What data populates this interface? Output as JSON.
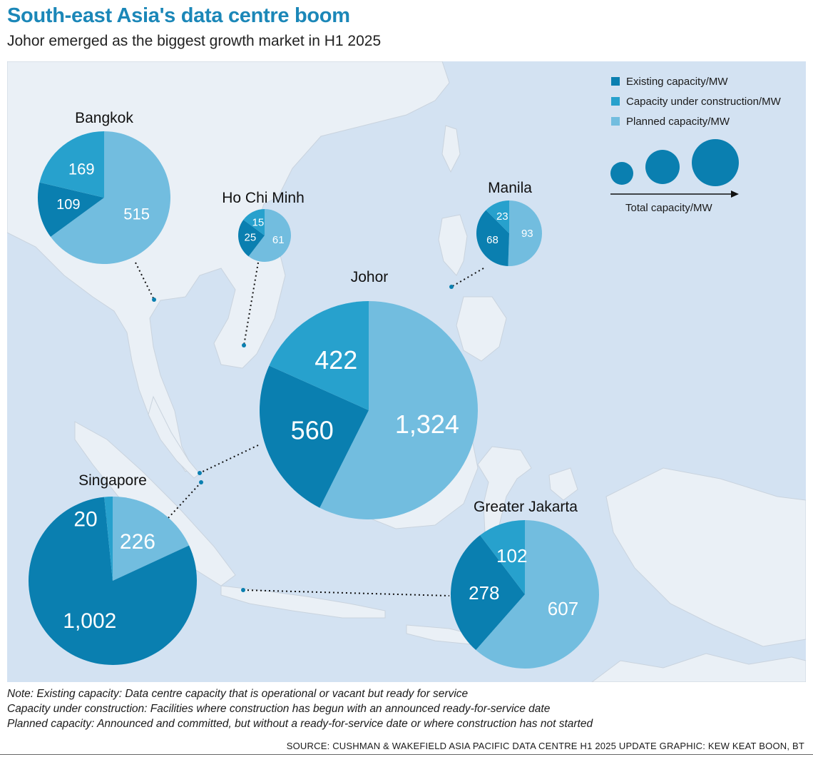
{
  "header": {
    "title": "South-east Asia's data centre boom",
    "subtitle": "Johor emerged as the biggest growth market in H1 2025"
  },
  "colors": {
    "existing": "#0a7fb0",
    "construction": "#27a1cd",
    "planned": "#72bddf",
    "sea": "#d3e2f2",
    "land": "#eaf0f6"
  },
  "legend": {
    "existing": "Existing capacity/MW",
    "construction": "Capacity under construction/MW",
    "planned": "Planned capacity/MW",
    "size_label": "Total capacity/MW"
  },
  "chart_data": {
    "type": "pie",
    "series_names": [
      "Existing capacity/MW",
      "Capacity under construction/MW",
      "Planned capacity/MW"
    ],
    "markets": [
      {
        "name": "Bangkok",
        "existing": 109,
        "construction": 169,
        "planned": 515,
        "labels": {
          "existing": "109",
          "construction": "169",
          "planned": "515"
        }
      },
      {
        "name": "Ho Chi Minh",
        "existing": 25,
        "construction": 15,
        "planned": 61,
        "labels": {
          "existing": "25",
          "construction": "15",
          "planned": "61"
        }
      },
      {
        "name": "Manila",
        "existing": 68,
        "construction": 23,
        "planned": 93,
        "labels": {
          "existing": "68",
          "construction": "23",
          "planned": "93"
        }
      },
      {
        "name": "Johor",
        "existing": 560,
        "construction": 422,
        "planned": 1324,
        "labels": {
          "existing": "560",
          "construction": "422",
          "planned": "1,324"
        }
      },
      {
        "name": "Singapore",
        "existing": 1002,
        "construction": 20,
        "planned": 226,
        "labels": {
          "existing": "1,002",
          "construction": "20",
          "planned": "226"
        }
      },
      {
        "name": "Greater Jakarta",
        "existing": 278,
        "construction": 102,
        "planned": 607,
        "labels": {
          "existing": "278",
          "construction": "102",
          "planned": "607"
        }
      }
    ]
  },
  "notes": [
    "Note: Existing capacity: Data centre capacity that is operational or vacant but ready for service",
    "Capacity under construction: Facilities where construction has begun with an announced ready-for-service date",
    "Planned capacity: Announced and committed, but without a ready-for-service date or where construction has not started"
  ],
  "source": "SOURCE: CUSHMAN & WAKEFIELD ASIA PACIFIC DATA CENTRE H1 2025 UPDATE   GRAPHIC: KEW KEAT BOON, BT"
}
